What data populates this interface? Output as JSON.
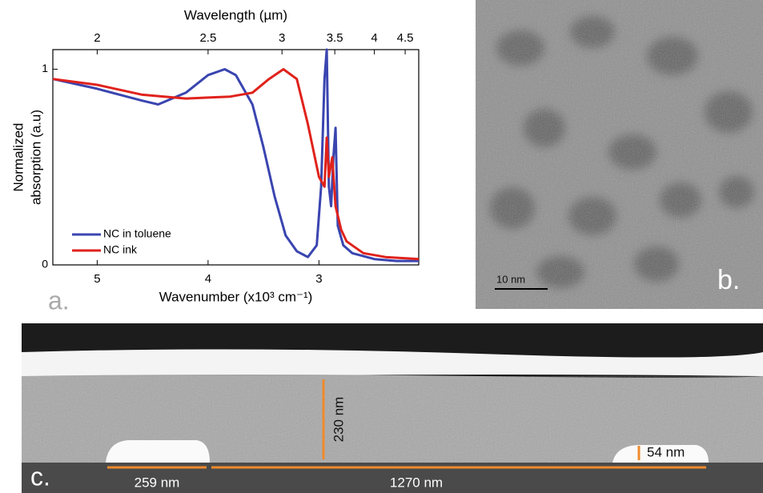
{
  "chart_data": {
    "type": "line",
    "panel_label": "a.",
    "xlabel": "Wavenumber (x10³ cm⁻¹)",
    "ylabel": [
      "Normalized",
      "absorption (a.u)"
    ],
    "x2label": "Wavelength (µm)",
    "xlim": [
      5.4,
      2.1
    ],
    "xticks": [
      5,
      4,
      3
    ],
    "ylim": [
      0,
      1.1
    ],
    "yticks": [
      0,
      1
    ],
    "x2lim": [
      1.852,
      4.762
    ],
    "x2ticks": [
      2,
      2.5,
      3,
      3.5,
      4,
      4.5
    ],
    "x2scale": "reciprocal",
    "legend": "lower left",
    "series": [
      {
        "name": "NC in toluene",
        "color": "#3a45b0",
        "x": [
          5.4,
          5.0,
          4.6,
          4.45,
          4.2,
          4.0,
          3.85,
          3.75,
          3.6,
          3.5,
          3.4,
          3.3,
          3.2,
          3.1,
          3.02,
          2.98,
          2.95,
          2.93,
          2.91,
          2.89,
          2.87,
          2.85,
          2.83,
          2.78,
          2.7,
          2.5,
          2.3,
          2.1
        ],
        "values": [
          0.95,
          0.9,
          0.84,
          0.82,
          0.88,
          0.97,
          1.0,
          0.97,
          0.82,
          0.6,
          0.35,
          0.15,
          0.07,
          0.04,
          0.1,
          0.4,
          0.95,
          1.1,
          0.4,
          0.3,
          0.55,
          0.7,
          0.2,
          0.1,
          0.06,
          0.03,
          0.02,
          0.02
        ]
      },
      {
        "name": "NC ink",
        "color": "#e0221c",
        "x": [
          5.4,
          5.0,
          4.6,
          4.2,
          3.8,
          3.6,
          3.45,
          3.32,
          3.2,
          3.1,
          3.0,
          2.95,
          2.93,
          2.91,
          2.88,
          2.85,
          2.8,
          2.75,
          2.6,
          2.4,
          2.1
        ],
        "values": [
          0.95,
          0.92,
          0.87,
          0.85,
          0.86,
          0.88,
          0.95,
          1.0,
          0.95,
          0.72,
          0.45,
          0.4,
          0.65,
          0.45,
          0.55,
          0.3,
          0.18,
          0.12,
          0.06,
          0.04,
          0.03
        ]
      }
    ]
  },
  "panel_b": {
    "label": "b.",
    "scale_bar": "10 nm"
  },
  "panel_c": {
    "label": "c.",
    "annotations": [
      "230 nm",
      "54 nm",
      "259 nm",
      "1270 nm"
    ]
  }
}
